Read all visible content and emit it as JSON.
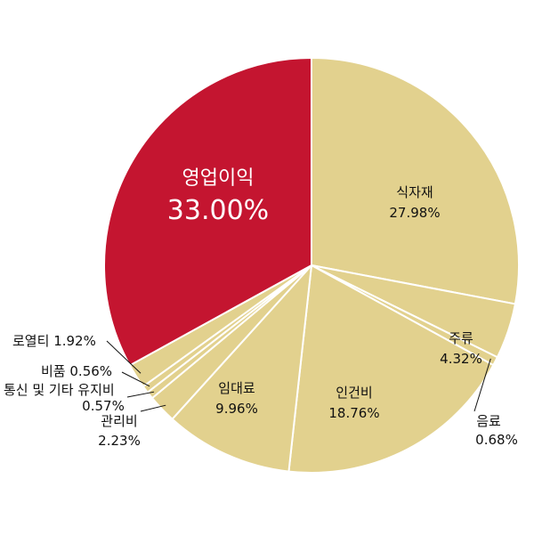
{
  "chart_data": {
    "type": "pie",
    "start_angle": "12 o'clock",
    "direction": "clockwise",
    "slices": [
      {
        "name": "식자재",
        "value": 27.98,
        "label": "27.98%",
        "color": "#e2d18e"
      },
      {
        "name": "주류",
        "value": 4.32,
        "label": "4.32%",
        "color": "#e2d18e"
      },
      {
        "name": "음료",
        "value": 0.68,
        "label": "0.68%",
        "color": "#e2d18e"
      },
      {
        "name": "인건비",
        "value": 18.76,
        "label": "18.76%",
        "color": "#e2d18e"
      },
      {
        "name": "임대료",
        "value": 9.96,
        "label": "9.96%",
        "color": "#e2d18e"
      },
      {
        "name": "관리비",
        "value": 2.23,
        "label": "2.23%",
        "color": "#e2d18e"
      },
      {
        "name": "통신 및 기타 유지비",
        "value": 0.57,
        "label": "0.57%",
        "color": "#e2d18e"
      },
      {
        "name": "비품",
        "value": 0.56,
        "label": "0.56%",
        "color": "#e2d18e"
      },
      {
        "name": "로열티",
        "value": 1.92,
        "label": "1.92%",
        "color": "#e2d18e"
      },
      {
        "name": "영업이익",
        "value": 33.0,
        "label": "33.00%",
        "color": "#c41530"
      }
    ],
    "slice_border_color": "#ffffff"
  }
}
